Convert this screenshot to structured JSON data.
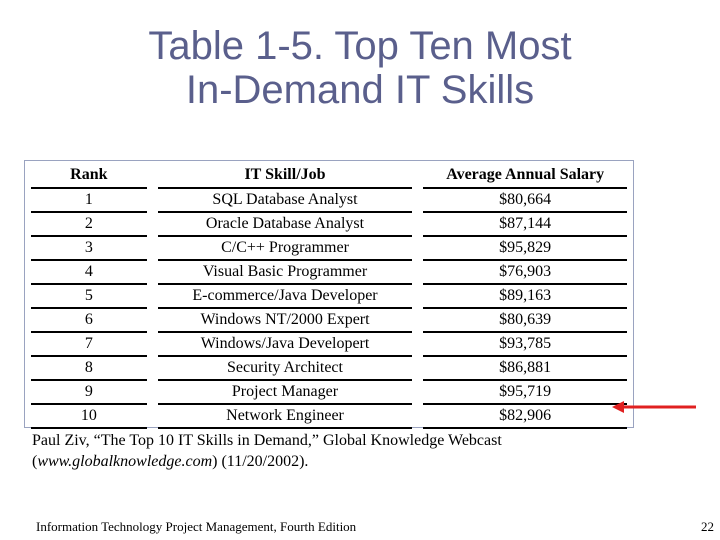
{
  "slide": {
    "title_line1": "Table 1-5. Top Ten Most",
    "title_line2": "In-Demand IT Skills"
  },
  "table": {
    "headers": [
      "Rank",
      "IT Skill/Job",
      "Average Annual Salary"
    ],
    "rows": [
      {
        "rank": "1",
        "skill": "SQL Database Analyst",
        "salary": "$80,664"
      },
      {
        "rank": "2",
        "skill": "Oracle Database Analyst",
        "salary": "$87,144"
      },
      {
        "rank": "3",
        "skill": "C/C++ Programmer",
        "salary": "$95,829"
      },
      {
        "rank": "4",
        "skill": "Visual Basic Programmer",
        "salary": "$76,903"
      },
      {
        "rank": "5",
        "skill": "E-commerce/Java Developer",
        "salary": "$89,163"
      },
      {
        "rank": "6",
        "skill": "Windows NT/2000 Expert",
        "salary": "$80,639"
      },
      {
        "rank": "7",
        "skill": "Windows/Java Developert",
        "salary": "$93,785"
      },
      {
        "rank": "8",
        "skill": "Security Architect",
        "salary": "$86,881"
      },
      {
        "rank": "9",
        "skill": "Project Manager",
        "salary": "$95,719"
      },
      {
        "rank": "10",
        "skill": "Network Engineer",
        "salary": "$82,906"
      }
    ]
  },
  "caption": {
    "line1": "Paul Ziv, “The Top 10 IT Skills in Demand,” Global Knowledge Webcast",
    "open_paren": "(",
    "url": "www.globalknowledge.com",
    "line2_rest": ") (11/20/2002)."
  },
  "footer": {
    "left": "Information Technology Project Management, Fourth Edition",
    "page_number": "22"
  },
  "colors": {
    "title": "#5a5f8c",
    "arrow": "#e02020"
  }
}
